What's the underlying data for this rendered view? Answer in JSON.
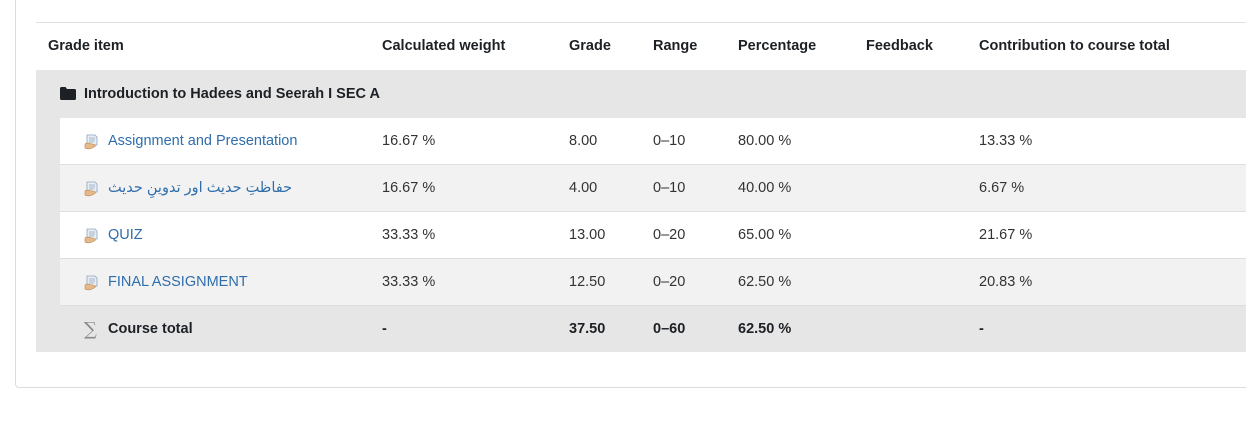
{
  "table": {
    "headers": {
      "grade_item": "Grade item",
      "calculated_weight": "Calculated weight",
      "grade": "Grade",
      "range": "Range",
      "percentage": "Percentage",
      "feedback": "Feedback",
      "contribution": "Contribution to course total"
    },
    "category": {
      "label": "Introduction to Hadees and Seerah I SEC A",
      "icon": "folder-icon"
    },
    "items": [
      {
        "name": "Assignment and Presentation",
        "weight": "16.67 %",
        "grade": "8.00",
        "range": "0–10",
        "percentage": "80.00 %",
        "feedback": "",
        "contribution": "13.33 %",
        "icon": "assignment-icon"
      },
      {
        "name": "حفاظتِ حدیث اور تدوینِ حدیث",
        "weight": "16.67 %",
        "grade": "4.00",
        "range": "0–10",
        "percentage": "40.00 %",
        "feedback": "",
        "contribution": "6.67 %",
        "icon": "assignment-icon"
      },
      {
        "name": "QUIZ",
        "weight": "33.33 %",
        "grade": "13.00",
        "range": "0–20",
        "percentage": "65.00 %",
        "feedback": "",
        "contribution": "21.67 %",
        "icon": "assignment-icon"
      },
      {
        "name": "FINAL ASSIGNMENT",
        "weight": "33.33 %",
        "grade": "12.50",
        "range": "0–20",
        "percentage": "62.50 %",
        "feedback": "",
        "contribution": "20.83 %",
        "icon": "assignment-icon"
      }
    ],
    "total": {
      "label": "Course total",
      "weight": "-",
      "grade": "37.50",
      "range": "0–60",
      "percentage": "62.50 %",
      "feedback": "",
      "contribution": "-",
      "icon": "sigma-icon"
    }
  },
  "colors": {
    "link": "#2f6dab",
    "category_bg": "#e6e6e6",
    "alt_row_bg": "#f2f2f2"
  }
}
